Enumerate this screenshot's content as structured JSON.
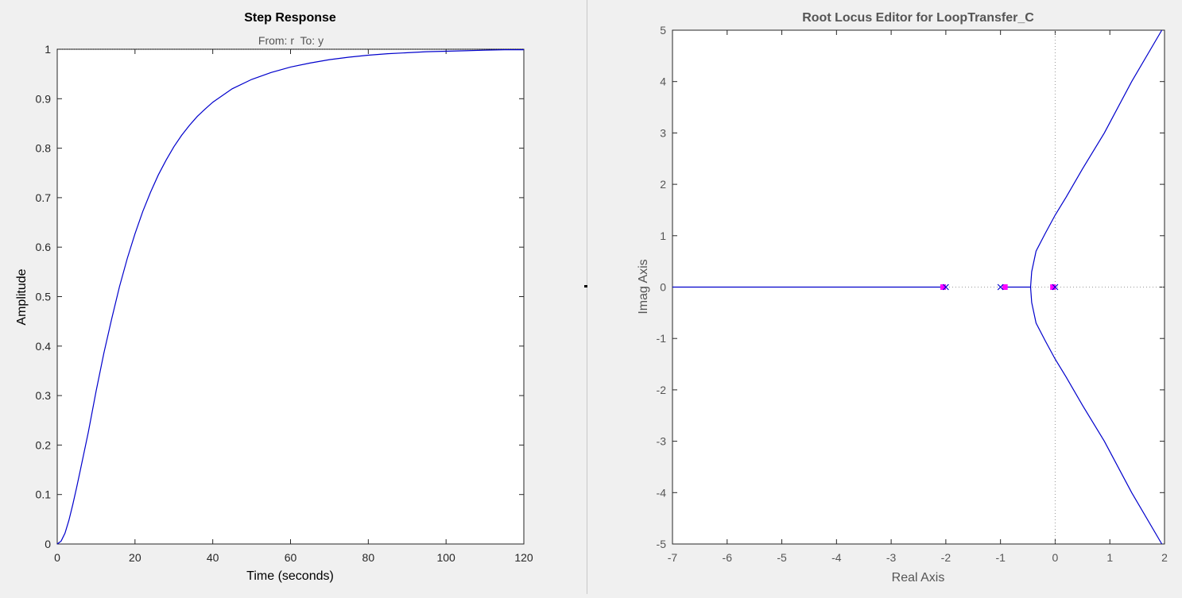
{
  "chart_data": [
    {
      "type": "line",
      "title": "Step Response",
      "subtitle": "From: r  To: y",
      "xlabel": "Time (seconds)",
      "ylabel": "Amplitude",
      "xlim": [
        0,
        120
      ],
      "ylim": [
        0,
        1
      ],
      "xticks": [
        0,
        20,
        40,
        60,
        80,
        100,
        120
      ],
      "yticks": [
        0,
        0.1,
        0.2,
        0.3,
        0.4,
        0.5,
        0.6,
        0.7,
        0.8,
        0.9,
        1
      ],
      "grid": false,
      "legend": "none",
      "reference_line": {
        "y": 1,
        "style": "dotted"
      },
      "series": [
        {
          "color": "#0000cc",
          "x": [
            0,
            1,
            2,
            3,
            4,
            5,
            6,
            8,
            10,
            12,
            14,
            16,
            18,
            20,
            22,
            24,
            26,
            28,
            30,
            32,
            34,
            36,
            38,
            40,
            45,
            50,
            55,
            60,
            65,
            70,
            75,
            80,
            85,
            90,
            95,
            100,
            105,
            110,
            115,
            120
          ],
          "y": [
            0,
            0.006,
            0.022,
            0.048,
            0.08,
            0.115,
            0.151,
            0.226,
            0.309,
            0.386,
            0.455,
            0.52,
            0.577,
            0.627,
            0.672,
            0.711,
            0.746,
            0.776,
            0.803,
            0.826,
            0.846,
            0.864,
            0.879,
            0.893,
            0.92,
            0.939,
            0.953,
            0.964,
            0.972,
            0.979,
            0.984,
            0.988,
            0.991,
            0.993,
            0.995,
            0.996,
            0.997,
            0.998,
            0.999,
            0.999
          ]
        }
      ]
    },
    {
      "type": "scatter",
      "title": "Root Locus Editor for LoopTransfer_C",
      "xlabel": "Real Axis",
      "ylabel": "Imag Axis",
      "xlim": [
        -7,
        2
      ],
      "ylim": [
        -5,
        5
      ],
      "xticks": [
        -7,
        -6,
        -5,
        -4,
        -3,
        -2,
        -1,
        0,
        1,
        2
      ],
      "yticks": [
        -5,
        -4,
        -3,
        -2,
        -1,
        0,
        1,
        2,
        3,
        4,
        5
      ],
      "grid": false,
      "legend": "none",
      "reference_lines": {
        "x": 0,
        "y": 0,
        "style": "dotted"
      },
      "branches": [
        {
          "x": [
            -7,
            -2.05
          ],
          "y": [
            0,
            0
          ]
        },
        {
          "x": [
            -0.95,
            -0.45
          ],
          "y": [
            0,
            0
          ]
        },
        {
          "x": [
            -0.45,
            -0.43,
            -0.35,
            -0.18,
            0,
            0.2,
            0.5,
            0.9,
            1.4,
            1.95
          ],
          "y": [
            0,
            0.3,
            0.7,
            1.05,
            1.4,
            1.75,
            2.3,
            3.0,
            4.0,
            5.0
          ]
        },
        {
          "x": [
            -0.45,
            -0.43,
            -0.35,
            -0.18,
            0,
            0.2,
            0.5,
            0.9,
            1.4,
            1.95
          ],
          "y": [
            0,
            -0.3,
            -0.7,
            -1.05,
            -1.4,
            -1.75,
            -2.3,
            -3.0,
            -4.0,
            -5.0
          ]
        }
      ],
      "poles": [
        {
          "x": -2,
          "y": 0
        },
        {
          "x": -1,
          "y": 0
        },
        {
          "x": 0,
          "y": 0
        }
      ],
      "closed_loop_poles": [
        {
          "x": -2.05,
          "y": 0
        },
        {
          "x": -0.92,
          "y": 0
        },
        {
          "x": -0.04,
          "y": 0
        }
      ],
      "colors": {
        "locus": "#0000cc",
        "pole_marker": "#0000cc",
        "closed_loop_marker": "#ff00ff",
        "reference": "#999999"
      }
    }
  ]
}
